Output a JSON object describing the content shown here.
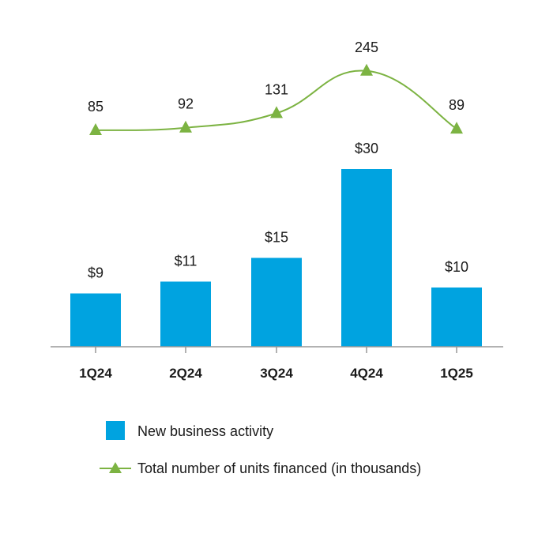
{
  "chart_data": {
    "type": "bar",
    "categories": [
      "1Q24",
      "2Q24",
      "3Q24",
      "4Q24",
      "1Q25"
    ],
    "series": [
      {
        "name": "New business activity",
        "type": "bar",
        "values": [
          9,
          11,
          15,
          30,
          10
        ],
        "labels": [
          "$9",
          "$11",
          "$15",
          "$30",
          "$10"
        ],
        "color": "#00a3e0"
      },
      {
        "name": "Total number of units financed (in thousands)",
        "type": "line",
        "marker": "triangle",
        "values": [
          85,
          92,
          131,
          245,
          89
        ],
        "labels": [
          "85",
          "92",
          "131",
          "245",
          "89"
        ],
        "color": "#7cb342"
      }
    ],
    "legend_position": "bottom",
    "grid": false
  }
}
